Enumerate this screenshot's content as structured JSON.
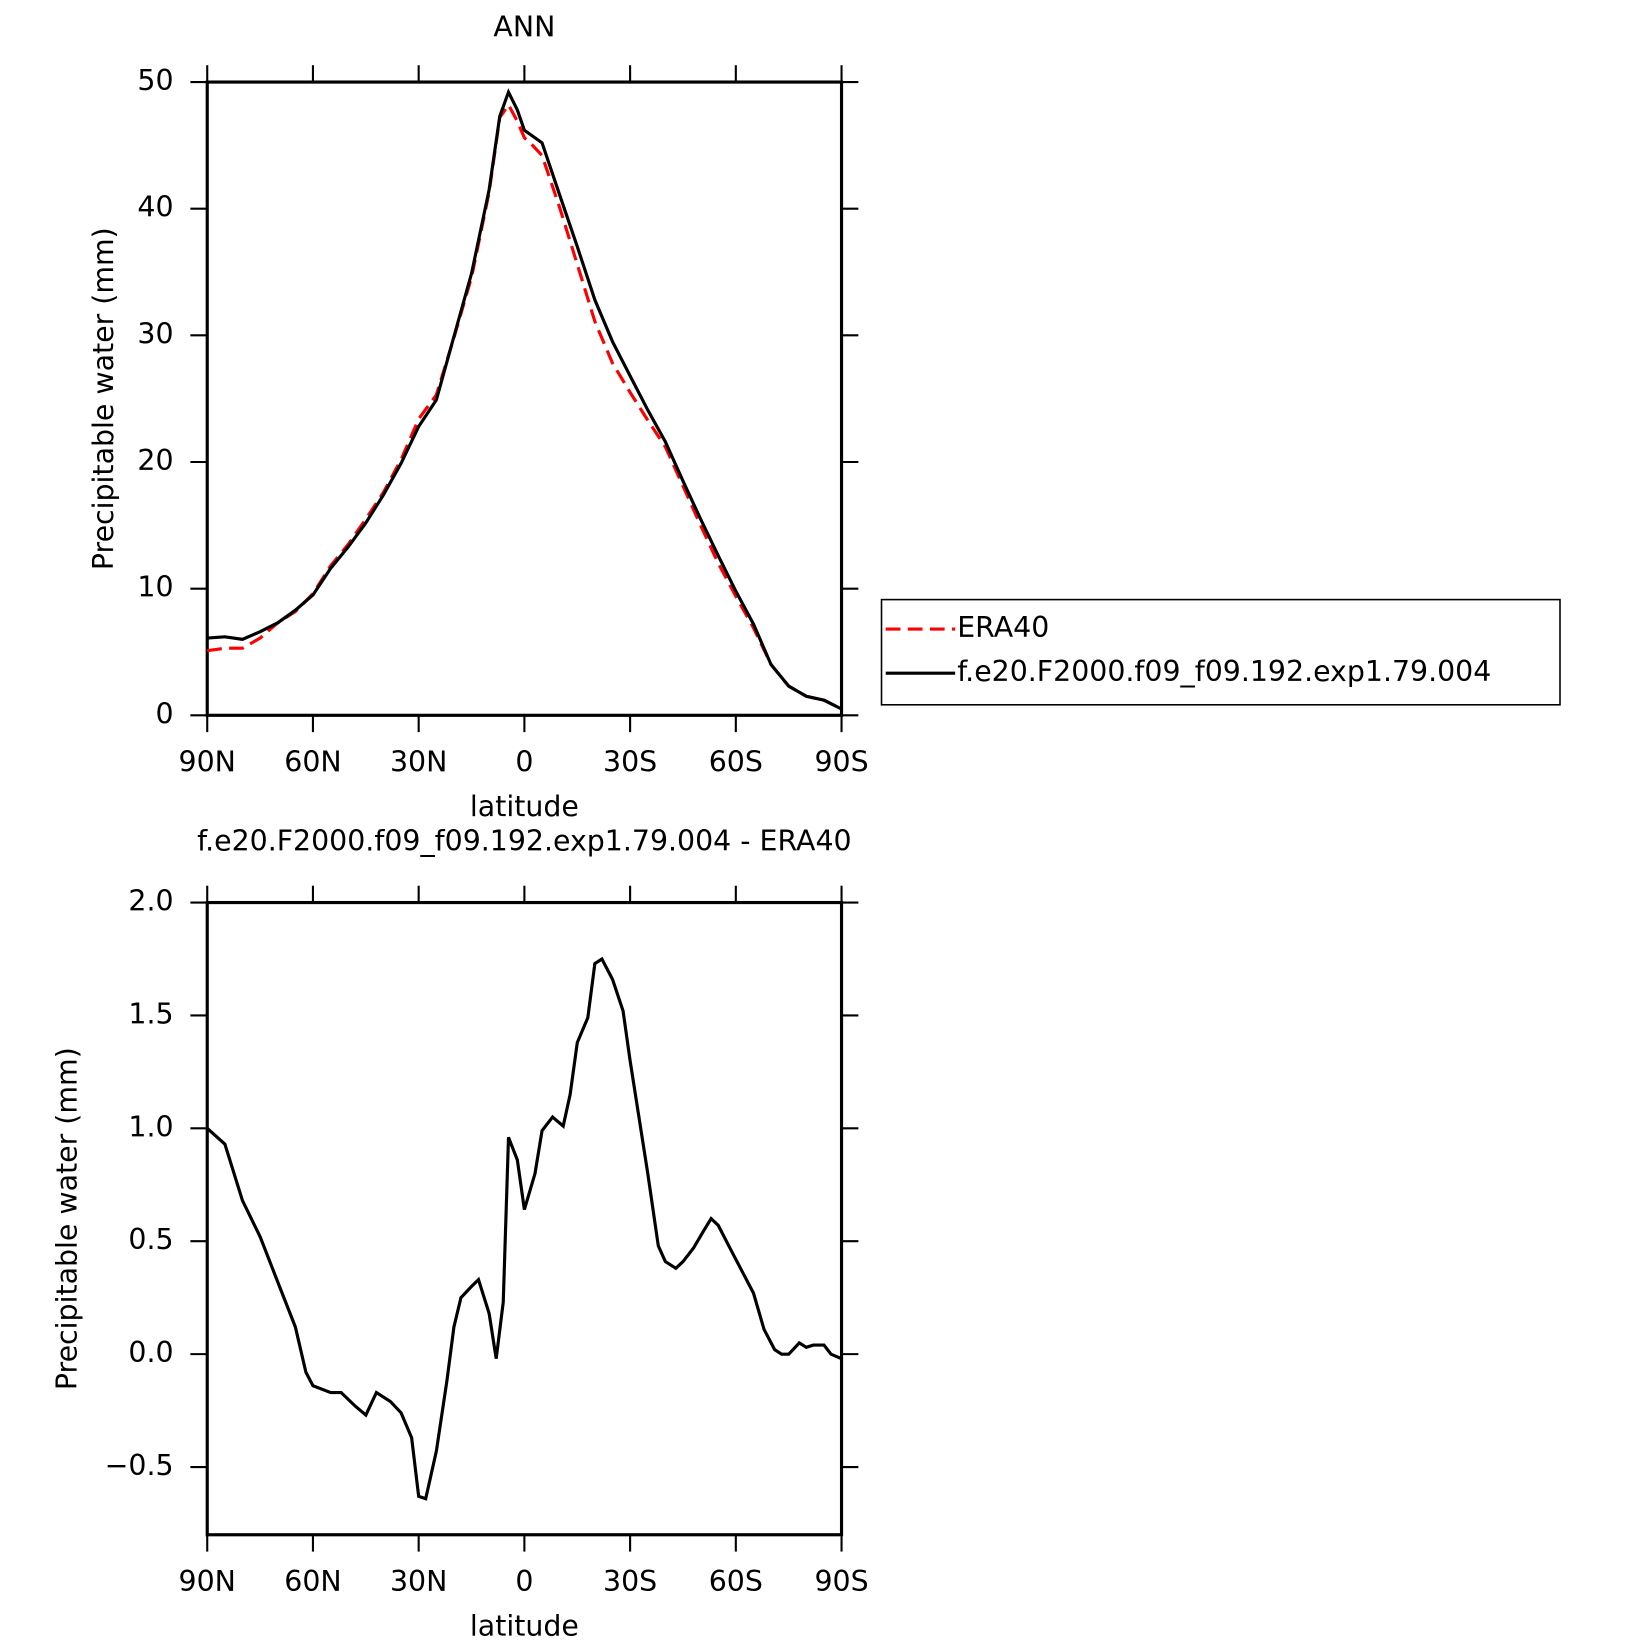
{
  "chart_data": [
    {
      "type": "line",
      "title": "ANN",
      "x_label": "latitude",
      "y_label": "Precipitable water (mm)",
      "x": [
        90,
        85,
        80,
        75,
        70,
        65,
        60,
        55,
        50,
        45,
        40,
        35,
        30,
        25,
        20,
        15,
        10,
        7,
        4.5,
        2,
        0,
        -2,
        -5,
        -10,
        -15,
        -20,
        -25,
        -30,
        -35,
        -40,
        -45,
        -50,
        -55,
        -60,
        -65,
        -70,
        -75,
        -80,
        -85,
        -90
      ],
      "xlim": [
        90,
        -90
      ],
      "xticks": [
        {
          "value": 90,
          "label": "90N"
        },
        {
          "value": 60,
          "label": "60N"
        },
        {
          "value": 30,
          "label": "30N"
        },
        0,
        {
          "value": -30,
          "label": "30S"
        },
        {
          "value": -60,
          "label": "60S"
        },
        {
          "value": -90,
          "label": "90S"
        }
      ],
      "ylim": [
        0,
        50
      ],
      "yticks": [
        0,
        10,
        20,
        30,
        40,
        50
      ],
      "legend": "right",
      "series": [
        {
          "name": "ERA40",
          "color": "#ff0000",
          "dashed": true,
          "values": [
            5.1,
            5.3,
            5.3,
            6.1,
            7.3,
            8.2,
            9.6,
            11.8,
            13.5,
            15.5,
            17.6,
            20.2,
            23.4,
            25.3,
            29.8,
            34.6,
            41.3,
            47.2,
            48.2,
            46.9,
            45.6,
            45.1,
            44.2,
            40.1,
            35.6,
            31.1,
            27.8,
            25.5,
            23.3,
            21.2,
            18.1,
            15.0,
            12.0,
            9.4,
            6.9,
            4.0,
            2.3,
            1.5,
            1.2,
            0.5
          ]
        },
        {
          "name": "f.e20.F2000.f09_f09.192.exp1.79.004",
          "color": "#000000",
          "dashed": false,
          "values": [
            6.1,
            6.2,
            6.0,
            6.6,
            7.3,
            8.3,
            9.5,
            11.6,
            13.3,
            15.2,
            17.4,
            19.9,
            22.8,
            24.9,
            29.9,
            34.9,
            41.5,
            47.3,
            49.2,
            47.8,
            46.2,
            45.8,
            45.2,
            41.1,
            37.0,
            32.8,
            29.5,
            26.8,
            24.1,
            21.6,
            18.5,
            15.5,
            12.6,
            9.8,
            7.2,
            4.0,
            2.3,
            1.5,
            1.2,
            0.5
          ]
        }
      ]
    },
    {
      "type": "line",
      "title": "f.e20.F2000.f09_f09.192.exp1.79.004 - ERA40",
      "x_label": "latitude",
      "y_label": "Precipitable water (mm)",
      "x": [
        90,
        85,
        80,
        75,
        70,
        65,
        62,
        60,
        55,
        52,
        48,
        45,
        42,
        38,
        35,
        32,
        30,
        28,
        25,
        22,
        20,
        18,
        15,
        13,
        10,
        8,
        6,
        4.5,
        2,
        0,
        -3,
        -5,
        -8,
        -11,
        -13,
        -15,
        -18,
        -20,
        -22,
        -25,
        -28,
        -30,
        -35,
        -38,
        -40,
        -43,
        -45,
        -48,
        -51,
        -53,
        -55,
        -58,
        -62,
        -65,
        -68,
        -71,
        -73,
        -75,
        -78,
        -80,
        -82,
        -85,
        -87,
        -90
      ],
      "xlim": [
        90,
        -90
      ],
      "xticks": [
        {
          "value": 90,
          "label": "90N"
        },
        {
          "value": 60,
          "label": "60N"
        },
        {
          "value": 30,
          "label": "30N"
        },
        0,
        {
          "value": -30,
          "label": "30S"
        },
        {
          "value": -60,
          "label": "60S"
        },
        {
          "value": -90,
          "label": "90S"
        }
      ],
      "ylim": [
        -0.8,
        2.0
      ],
      "yticks": [
        {
          "value": -0.5,
          "label": "−0.5"
        },
        {
          "value": 0,
          "label": "0.0"
        },
        0.5,
        {
          "value": 1,
          "label": "1.0"
        },
        1.5,
        {
          "value": 2,
          "label": "2.0"
        }
      ],
      "color": "#000000",
      "values": [
        1.0,
        0.93,
        0.68,
        0.52,
        0.32,
        0.12,
        -0.08,
        -0.14,
        -0.17,
        -0.17,
        -0.23,
        -0.27,
        -0.17,
        -0.21,
        -0.26,
        -0.37,
        -0.63,
        -0.64,
        -0.43,
        -0.12,
        0.12,
        0.25,
        0.3,
        0.33,
        0.18,
        -0.02,
        0.23,
        0.96,
        0.86,
        0.64,
        0.8,
        0.99,
        1.05,
        1.01,
        1.15,
        1.38,
        1.49,
        1.73,
        1.75,
        1.66,
        1.52,
        1.3,
        0.8,
        0.48,
        0.41,
        0.38,
        0.41,
        0.47,
        0.55,
        0.6,
        0.57,
        0.48,
        0.36,
        0.27,
        0.11,
        0.02,
        0.0,
        0.0,
        0.05,
        0.03,
        0.04,
        0.04,
        0.0,
        -0.02
      ]
    }
  ]
}
